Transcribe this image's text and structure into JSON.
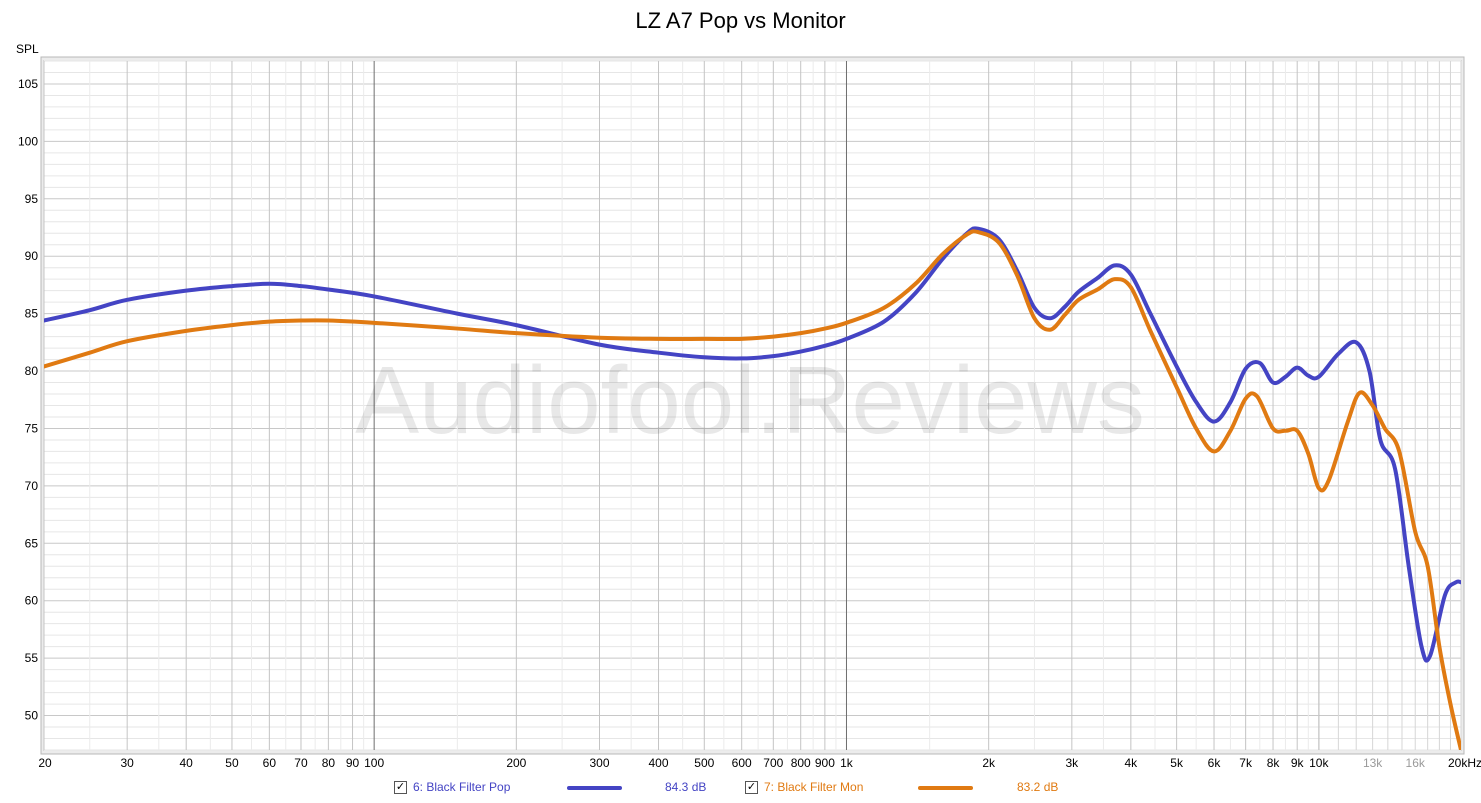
{
  "chart_data": {
    "type": "line",
    "title": "LZ A7 Pop vs Monitor",
    "ylabel": "SPL",
    "xunit": "kHz",
    "xscale": "log",
    "xlim": [
      20,
      20000
    ],
    "ylim": [
      47,
      107
    ],
    "grid": true,
    "watermark": "Audiofool.Reviews",
    "yticks": [
      50,
      55,
      60,
      65,
      70,
      75,
      80,
      85,
      90,
      95,
      100,
      105
    ],
    "xticks": [
      {
        "value": 20,
        "label": "20"
      },
      {
        "value": 30,
        "label": "30"
      },
      {
        "value": 40,
        "label": "40"
      },
      {
        "value": 50,
        "label": "50"
      },
      {
        "value": 60,
        "label": "60"
      },
      {
        "value": 70,
        "label": "70"
      },
      {
        "value": 80,
        "label": "80"
      },
      {
        "value": 90,
        "label": "90"
      },
      {
        "value": 100,
        "label": "100"
      },
      {
        "value": 200,
        "label": "200"
      },
      {
        "value": 300,
        "label": "300"
      },
      {
        "value": 400,
        "label": "400"
      },
      {
        "value": 500,
        "label": "500"
      },
      {
        "value": 600,
        "label": "600"
      },
      {
        "value": 700,
        "label": "700"
      },
      {
        "value": 800,
        "label": "800"
      },
      {
        "value": 900,
        "label": "900"
      },
      {
        "value": 1000,
        "label": "1k"
      },
      {
        "value": 2000,
        "label": "2k"
      },
      {
        "value": 3000,
        "label": "3k"
      },
      {
        "value": 4000,
        "label": "4k"
      },
      {
        "value": 5000,
        "label": "5k"
      },
      {
        "value": 6000,
        "label": "6k"
      },
      {
        "value": 7000,
        "label": "7k"
      },
      {
        "value": 8000,
        "label": "8k"
      },
      {
        "value": 9000,
        "label": "9k"
      },
      {
        "value": 10000,
        "label": "10k"
      },
      {
        "value": 13000,
        "label": "13k",
        "light": true
      },
      {
        "value": 16000,
        "label": "16k",
        "light": true
      },
      {
        "value": 20000,
        "label": "20kHz"
      }
    ],
    "series": [
      {
        "name": "6: Black Filter Pop",
        "level": "84.3 dB",
        "color": "#4444c4",
        "points": [
          [
            20,
            84.4
          ],
          [
            25,
            85.3
          ],
          [
            30,
            86.2
          ],
          [
            40,
            87.0
          ],
          [
            50,
            87.4
          ],
          [
            60,
            87.6
          ],
          [
            70,
            87.4
          ],
          [
            80,
            87.1
          ],
          [
            100,
            86.5
          ],
          [
            150,
            85.0
          ],
          [
            200,
            84.0
          ],
          [
            300,
            82.3
          ],
          [
            400,
            81.6
          ],
          [
            500,
            81.2
          ],
          [
            600,
            81.1
          ],
          [
            700,
            81.3
          ],
          [
            800,
            81.7
          ],
          [
            900,
            82.2
          ],
          [
            1000,
            82.8
          ],
          [
            1200,
            84.3
          ],
          [
            1400,
            86.8
          ],
          [
            1600,
            89.8
          ],
          [
            1800,
            92.0
          ],
          [
            1900,
            92.4
          ],
          [
            2100,
            91.5
          ],
          [
            2300,
            88.7
          ],
          [
            2500,
            85.5
          ],
          [
            2700,
            84.6
          ],
          [
            2900,
            85.6
          ],
          [
            3100,
            86.9
          ],
          [
            3400,
            88.1
          ],
          [
            3700,
            89.2
          ],
          [
            4000,
            88.4
          ],
          [
            4400,
            85.0
          ],
          [
            5000,
            80.4
          ],
          [
            5500,
            77.3
          ],
          [
            6000,
            75.6
          ],
          [
            6500,
            77.3
          ],
          [
            7000,
            80.2
          ],
          [
            7500,
            80.7
          ],
          [
            8000,
            79.0
          ],
          [
            8500,
            79.5
          ],
          [
            9000,
            80.3
          ],
          [
            9500,
            79.6
          ],
          [
            10000,
            79.5
          ],
          [
            11000,
            81.5
          ],
          [
            12000,
            82.5
          ],
          [
            12800,
            80.0
          ],
          [
            13500,
            74.0
          ],
          [
            14500,
            71.5
          ],
          [
            15500,
            63.0
          ],
          [
            16500,
            56.0
          ],
          [
            17200,
            55.2
          ],
          [
            18500,
            60.5
          ],
          [
            19500,
            61.6
          ],
          [
            20000,
            61.6
          ]
        ]
      },
      {
        "name": "7: Black Filter Mon",
        "level": "83.2 dB",
        "color": "#e07a12",
        "points": [
          [
            20,
            80.4
          ],
          [
            25,
            81.6
          ],
          [
            30,
            82.6
          ],
          [
            40,
            83.5
          ],
          [
            50,
            84.0
          ],
          [
            60,
            84.3
          ],
          [
            70,
            84.4
          ],
          [
            80,
            84.4
          ],
          [
            100,
            84.2
          ],
          [
            150,
            83.7
          ],
          [
            200,
            83.3
          ],
          [
            300,
            82.9
          ],
          [
            400,
            82.8
          ],
          [
            500,
            82.8
          ],
          [
            600,
            82.8
          ],
          [
            700,
            83.0
          ],
          [
            800,
            83.3
          ],
          [
            900,
            83.7
          ],
          [
            1000,
            84.2
          ],
          [
            1200,
            85.5
          ],
          [
            1400,
            87.6
          ],
          [
            1600,
            90.2
          ],
          [
            1800,
            91.9
          ],
          [
            1900,
            92.1
          ],
          [
            2100,
            91.2
          ],
          [
            2300,
            88.3
          ],
          [
            2500,
            84.6
          ],
          [
            2700,
            83.6
          ],
          [
            2900,
            84.9
          ],
          [
            3100,
            86.2
          ],
          [
            3400,
            87.1
          ],
          [
            3700,
            88.0
          ],
          [
            4000,
            87.3
          ],
          [
            4400,
            83.5
          ],
          [
            5000,
            78.6
          ],
          [
            5500,
            75.0
          ],
          [
            6000,
            73.0
          ],
          [
            6500,
            74.8
          ],
          [
            7000,
            77.6
          ],
          [
            7400,
            77.8
          ],
          [
            8000,
            75.0
          ],
          [
            8500,
            74.8
          ],
          [
            9000,
            74.8
          ],
          [
            9500,
            72.8
          ],
          [
            10000,
            69.8
          ],
          [
            10500,
            70.5
          ],
          [
            11500,
            75.5
          ],
          [
            12200,
            78.1
          ],
          [
            13000,
            77.0
          ],
          [
            13800,
            75.0
          ],
          [
            14800,
            73.0
          ],
          [
            16000,
            66.0
          ],
          [
            17000,
            63.0
          ],
          [
            18000,
            56.0
          ],
          [
            19000,
            51.0
          ],
          [
            20000,
            47.0
          ]
        ]
      }
    ]
  }
}
